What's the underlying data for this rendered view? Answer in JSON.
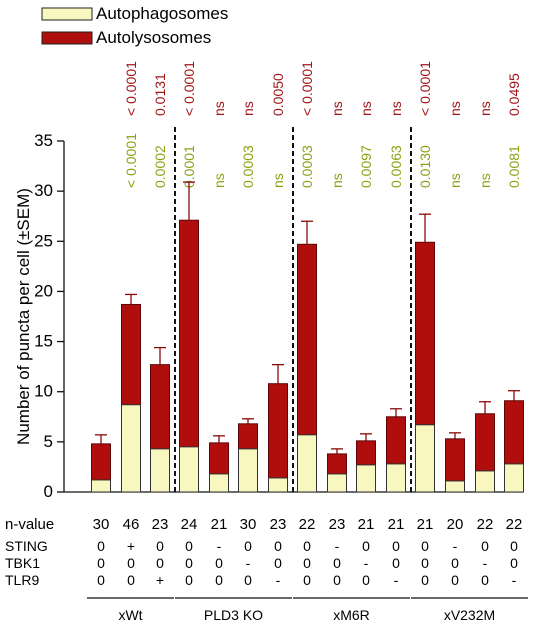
{
  "chart_data": {
    "type": "bar",
    "stacked": true,
    "ylabel": "Number of puncta per cell (±SEM)",
    "ylim": [
      0,
      35
    ],
    "yticks": [
      0,
      5,
      10,
      15,
      20,
      25,
      30,
      35
    ],
    "legend": {
      "position": "top-left",
      "entries": [
        {
          "name": "Autophagosomes",
          "color": "#f7f7bf"
        },
        {
          "name": "Autolysosomes",
          "color": "#b00d0d"
        }
      ]
    },
    "series": [
      {
        "name": "Autophagosomes",
        "color": "#f7f7bf",
        "values": [
          1.2,
          8.7,
          4.3,
          4.5,
          1.8,
          4.3,
          1.4,
          5.7,
          1.8,
          2.7,
          2.8,
          6.7,
          1.1,
          2.1,
          2.8
        ]
      },
      {
        "name": "Autolysosomes",
        "color": "#b00d0d",
        "values": [
          3.6,
          10.0,
          8.4,
          22.6,
          3.1,
          2.5,
          9.4,
          19.0,
          2.0,
          2.4,
          4.7,
          18.2,
          4.2,
          5.7,
          6.3
        ]
      }
    ],
    "error_top": [
      5.7,
      19.7,
      14.4,
      30.9,
      5.6,
      7.3,
      12.7,
      27.0,
      4.3,
      5.8,
      8.3,
      27.7,
      5.9,
      9.0,
      10.1
    ],
    "n_values": [
      "30",
      "46",
      "23",
      "24",
      "21",
      "30",
      "23",
      "22",
      "23",
      "21",
      "21",
      "21",
      "20",
      "22",
      "22"
    ],
    "n_label": "n-value",
    "pvalues_red": [
      "",
      "< 0.0001",
      "0.0131",
      "< 0.0001",
      "ns",
      "ns",
      "0.0050",
      "< 0.0001",
      "ns",
      "ns",
      "ns",
      "< 0.0001",
      "ns",
      "ns",
      "0.0495"
    ],
    "pvalues_green": [
      "",
      "< 0.0001",
      "0.0002",
      "0.0001",
      "ns",
      "0.0003",
      "ns",
      "0.0003",
      "ns",
      "0.0097",
      "0.0063",
      "0.0130",
      "ns",
      "ns",
      "0.0081"
    ],
    "condition_rows": [
      {
        "label": "STING",
        "values": [
          "0",
          "+",
          "0",
          "0",
          "-",
          "0",
          "0",
          "0",
          "-",
          "0",
          "0",
          "0",
          "-",
          "0",
          "0"
        ]
      },
      {
        "label": "TBK1",
        "values": [
          "0",
          "0",
          "0",
          "0",
          "0",
          "-",
          "0",
          "0",
          "0",
          "-",
          "0",
          "0",
          "0",
          "-",
          "0"
        ]
      },
      {
        "label": "TLR9",
        "values": [
          "0",
          "0",
          "+",
          "0",
          "0",
          "0",
          "-",
          "0",
          "0",
          "0",
          "-",
          "0",
          "0",
          "0",
          "-"
        ]
      }
    ],
    "groups": [
      {
        "name": "xWt",
        "start": 0,
        "end": 2
      },
      {
        "name": "PLD3 KO",
        "start": 3,
        "end": 6
      },
      {
        "name": "xM6R",
        "start": 7,
        "end": 10
      },
      {
        "name": "xV232M",
        "start": 11,
        "end": 14
      }
    ],
    "separators_after": [
      2,
      6,
      10
    ]
  }
}
